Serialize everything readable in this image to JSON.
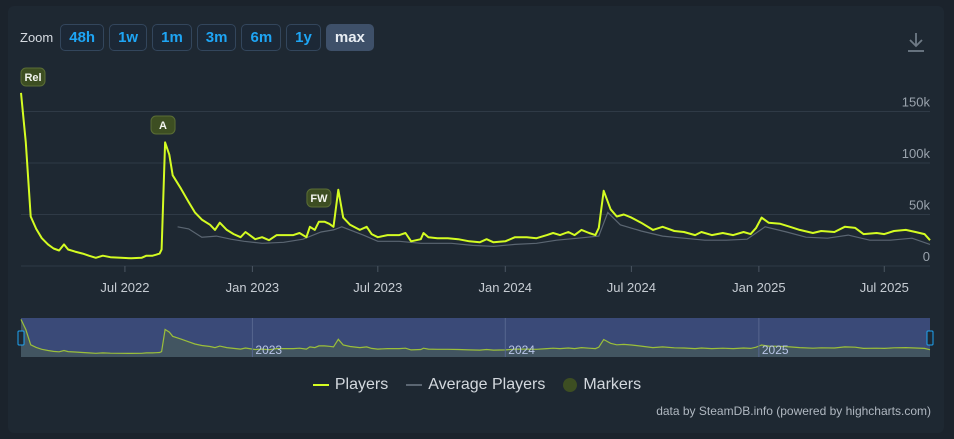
{
  "zoom": {
    "label": "Zoom",
    "buttons": [
      {
        "label": "48h",
        "active": false
      },
      {
        "label": "1w",
        "active": false
      },
      {
        "label": "1m",
        "active": false
      },
      {
        "label": "3m",
        "active": false
      },
      {
        "label": "6m",
        "active": false
      },
      {
        "label": "1y",
        "active": false
      },
      {
        "label": "max",
        "active": true
      }
    ]
  },
  "download_icon": "download-icon",
  "legend": {
    "players": "Players",
    "average": "Average Players",
    "markers": "Markers"
  },
  "credit": "data by SteamDB.info (powered by highcharts.com)",
  "colors": {
    "players": "#d4fc22",
    "average": "#5b6672",
    "marker": "#3d4e22",
    "navigator_fill": "#3a4a78",
    "navigator_series": "#9bbf3a"
  },
  "chart_data": {
    "type": "line",
    "x_axis": {
      "type": "datetime",
      "range": [
        "2022-02-01",
        "2025-09-05"
      ]
    },
    "y_axis": {
      "range": [
        0,
        165000
      ],
      "ticks": [
        0,
        50000,
        100000,
        150000
      ],
      "tick_labels": [
        "0",
        "50k",
        "100k",
        "150k"
      ],
      "position": "right"
    },
    "x_ticks": [
      {
        "date": "2022-07-01",
        "label": "Jul 2022"
      },
      {
        "date": "2023-01-01",
        "label": "Jan 2023"
      },
      {
        "date": "2023-07-01",
        "label": "Jul 2023"
      },
      {
        "date": "2024-01-01",
        "label": "Jan 2024"
      },
      {
        "date": "2024-07-01",
        "label": "Jul 2024"
      },
      {
        "date": "2025-01-01",
        "label": "Jan 2025"
      },
      {
        "date": "2025-07-01",
        "label": "Jul 2025"
      }
    ],
    "navigator_labels": [
      {
        "date": "2023-01-01",
        "label": "2023"
      },
      {
        "date": "2024-01-01",
        "label": "2024"
      },
      {
        "date": "2025-01-01",
        "label": "2025"
      }
    ],
    "markers": [
      {
        "label": "Rel",
        "date": "2022-02-01",
        "value": 168000
      },
      {
        "label": "A",
        "date": "2022-08-25",
        "value": 120000
      },
      {
        "label": "FW",
        "date": "2023-04-07",
        "value": 43000
      }
    ],
    "grid": true,
    "legend_position": "bottom",
    "series": [
      {
        "name": "Players",
        "points": [
          [
            "2022-02-01",
            168000
          ],
          [
            "2022-02-08",
            120000
          ],
          [
            "2022-02-15",
            48000
          ],
          [
            "2022-02-23",
            36000
          ],
          [
            "2022-03-03",
            27000
          ],
          [
            "2022-03-12",
            21000
          ],
          [
            "2022-03-20",
            17000
          ],
          [
            "2022-03-28",
            15000
          ],
          [
            "2022-04-04",
            21000
          ],
          [
            "2022-04-10",
            16000
          ],
          [
            "2022-04-20",
            14000
          ],
          [
            "2022-05-01",
            12000
          ],
          [
            "2022-05-10",
            10000
          ],
          [
            "2022-05-20",
            8000
          ],
          [
            "2022-05-30",
            10000
          ],
          [
            "2022-06-10",
            8500
          ],
          [
            "2022-06-25",
            8000
          ],
          [
            "2022-07-10",
            7500
          ],
          [
            "2022-07-25",
            8000
          ],
          [
            "2022-08-01",
            10000
          ],
          [
            "2022-08-10",
            10000
          ],
          [
            "2022-08-15",
            11000
          ],
          [
            "2022-08-20",
            12000
          ],
          [
            "2022-08-23",
            16000
          ],
          [
            "2022-08-28",
            120000
          ],
          [
            "2022-09-03",
            108000
          ],
          [
            "2022-09-08",
            88000
          ],
          [
            "2022-09-20",
            75000
          ],
          [
            "2022-10-01",
            62000
          ],
          [
            "2022-10-10",
            52000
          ],
          [
            "2022-10-20",
            45000
          ],
          [
            "2022-11-01",
            40000
          ],
          [
            "2022-11-08",
            35000
          ],
          [
            "2022-11-15",
            42000
          ],
          [
            "2022-11-25",
            35000
          ],
          [
            "2022-12-05",
            31000
          ],
          [
            "2022-12-15",
            28000
          ],
          [
            "2022-12-22",
            33000
          ],
          [
            "2023-01-05",
            26000
          ],
          [
            "2023-01-15",
            28000
          ],
          [
            "2023-01-25",
            25000
          ],
          [
            "2023-02-05",
            30000
          ],
          [
            "2023-02-15",
            30000
          ],
          [
            "2023-03-01",
            30000
          ],
          [
            "2023-03-10",
            32000
          ],
          [
            "2023-03-20",
            28000
          ],
          [
            "2023-03-25",
            38000
          ],
          [
            "2023-04-01",
            35000
          ],
          [
            "2023-04-07",
            43000
          ],
          [
            "2023-04-15",
            43000
          ],
          [
            "2023-04-22",
            41000
          ],
          [
            "2023-04-28",
            38000
          ],
          [
            "2023-05-05",
            74000
          ],
          [
            "2023-05-12",
            47000
          ],
          [
            "2023-05-22",
            40000
          ],
          [
            "2023-06-05",
            35000
          ],
          [
            "2023-06-15",
            38000
          ],
          [
            "2023-06-22",
            31000
          ],
          [
            "2023-07-01",
            28000
          ],
          [
            "2023-07-15",
            30000
          ],
          [
            "2023-08-01",
            30000
          ],
          [
            "2023-08-10",
            32000
          ],
          [
            "2023-08-18",
            24000
          ],
          [
            "2023-09-01",
            26000
          ],
          [
            "2023-09-05",
            32000
          ],
          [
            "2023-09-12",
            28000
          ],
          [
            "2023-09-25",
            27000
          ],
          [
            "2023-10-10",
            27000
          ],
          [
            "2023-10-25",
            26000
          ],
          [
            "2023-11-10",
            24000
          ],
          [
            "2023-11-25",
            23000
          ],
          [
            "2023-12-05",
            26000
          ],
          [
            "2023-12-15",
            23000
          ],
          [
            "2024-01-01",
            24000
          ],
          [
            "2024-01-15",
            28000
          ],
          [
            "2024-02-01",
            28000
          ],
          [
            "2024-02-15",
            27000
          ],
          [
            "2024-03-01",
            30000
          ],
          [
            "2024-03-10",
            32000
          ],
          [
            "2024-03-20",
            30000
          ],
          [
            "2024-04-01",
            33000
          ],
          [
            "2024-04-10",
            30000
          ],
          [
            "2024-04-20",
            35000
          ],
          [
            "2024-05-01",
            32000
          ],
          [
            "2024-05-10",
            30000
          ],
          [
            "2024-05-15",
            37000
          ],
          [
            "2024-05-22",
            73000
          ],
          [
            "2024-06-01",
            55000
          ],
          [
            "2024-06-10",
            48000
          ],
          [
            "2024-06-20",
            50000
          ],
          [
            "2024-07-01",
            47000
          ],
          [
            "2024-07-15",
            42000
          ],
          [
            "2024-08-01",
            35000
          ],
          [
            "2024-08-15",
            38000
          ],
          [
            "2024-09-01",
            34000
          ],
          [
            "2024-09-15",
            33000
          ],
          [
            "2024-10-01",
            30000
          ],
          [
            "2024-10-10",
            33000
          ],
          [
            "2024-10-25",
            30000
          ],
          [
            "2024-11-10",
            32000
          ],
          [
            "2024-11-25",
            30000
          ],
          [
            "2024-12-10",
            33000
          ],
          [
            "2024-12-20",
            31000
          ],
          [
            "2024-12-28",
            37000
          ],
          [
            "2025-01-05",
            47000
          ],
          [
            "2025-01-15",
            42000
          ],
          [
            "2025-02-01",
            41000
          ],
          [
            "2025-02-15",
            38000
          ],
          [
            "2025-03-01",
            35000
          ],
          [
            "2025-03-20",
            32000
          ],
          [
            "2025-04-01",
            34000
          ],
          [
            "2025-04-20",
            33000
          ],
          [
            "2025-05-05",
            38000
          ],
          [
            "2025-05-20",
            37000
          ],
          [
            "2025-06-01",
            31000
          ],
          [
            "2025-06-20",
            32000
          ],
          [
            "2025-07-01",
            31000
          ],
          [
            "2025-07-15",
            34000
          ],
          [
            "2025-08-01",
            35000
          ],
          [
            "2025-08-15",
            33000
          ],
          [
            "2025-08-28",
            31000
          ],
          [
            "2025-09-05",
            25000
          ]
        ]
      },
      {
        "name": "Average Players",
        "points": [
          [
            "2022-09-15",
            38000
          ],
          [
            "2022-10-01",
            36000
          ],
          [
            "2022-10-20",
            28000
          ],
          [
            "2022-11-10",
            29000
          ],
          [
            "2022-12-01",
            26000
          ],
          [
            "2022-12-20",
            24000
          ],
          [
            "2023-01-15",
            22000
          ],
          [
            "2023-02-15",
            23000
          ],
          [
            "2023-03-15",
            26000
          ],
          [
            "2023-04-10",
            33000
          ],
          [
            "2023-04-28",
            35000
          ],
          [
            "2023-05-10",
            38000
          ],
          [
            "2023-06-10",
            30000
          ],
          [
            "2023-07-01",
            24000
          ],
          [
            "2023-08-01",
            24000
          ],
          [
            "2023-09-01",
            22000
          ],
          [
            "2023-10-15",
            22000
          ],
          [
            "2023-11-15",
            20000
          ],
          [
            "2023-12-15",
            19000
          ],
          [
            "2024-01-15",
            21000
          ],
          [
            "2024-02-15",
            22000
          ],
          [
            "2024-03-15",
            25000
          ],
          [
            "2024-04-15",
            27000
          ],
          [
            "2024-05-15",
            29000
          ],
          [
            "2024-05-28",
            52000
          ],
          [
            "2024-06-15",
            40000
          ],
          [
            "2024-07-15",
            34000
          ],
          [
            "2024-08-15",
            29000
          ],
          [
            "2024-09-15",
            27000
          ],
          [
            "2024-10-15",
            25000
          ],
          [
            "2024-11-15",
            25000
          ],
          [
            "2024-12-15",
            26000
          ],
          [
            "2025-01-10",
            38000
          ],
          [
            "2025-02-10",
            33000
          ],
          [
            "2025-03-10",
            28000
          ],
          [
            "2025-04-10",
            27000
          ],
          [
            "2025-05-10",
            30000
          ],
          [
            "2025-06-10",
            25000
          ],
          [
            "2025-07-10",
            25000
          ],
          [
            "2025-08-10",
            27000
          ],
          [
            "2025-09-05",
            21000
          ]
        ]
      }
    ]
  }
}
